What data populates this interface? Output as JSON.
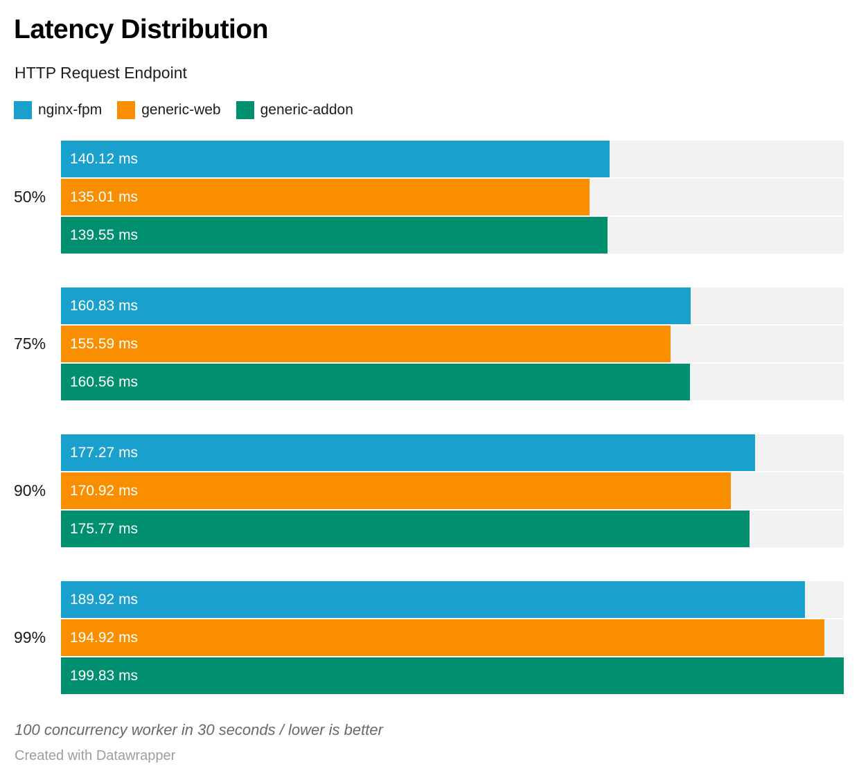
{
  "header": {
    "title": "Latency Distribution",
    "subtitle": "HTTP Request Endpoint"
  },
  "chart_data": {
    "type": "bar",
    "orientation": "horizontal",
    "title": "Latency Distribution",
    "subtitle": "HTTP Request Endpoint",
    "categories": [
      "50%",
      "75%",
      "90%",
      "99%"
    ],
    "series": [
      {
        "name": "nginx-fpm",
        "color": "#1aa0cc",
        "values": [
          140.12,
          160.83,
          177.27,
          189.92
        ]
      },
      {
        "name": "generic-web",
        "color": "#f98e00",
        "values": [
          135.01,
          155.59,
          170.92,
          194.92
        ]
      },
      {
        "name": "generic-addon",
        "color": "#00906f",
        "values": [
          139.55,
          160.56,
          175.77,
          199.83
        ]
      }
    ],
    "value_suffix": " ms",
    "value_decimals": 2,
    "xlim": [
      0,
      199.83
    ],
    "track_color": "#f2f2f2",
    "bar_label_color": "#ffffff",
    "legend_position": "top",
    "grid": false
  },
  "footer": {
    "note": "100 concurrency worker in 30 seconds / lower is better",
    "credit": "Created with Datawrapper"
  }
}
